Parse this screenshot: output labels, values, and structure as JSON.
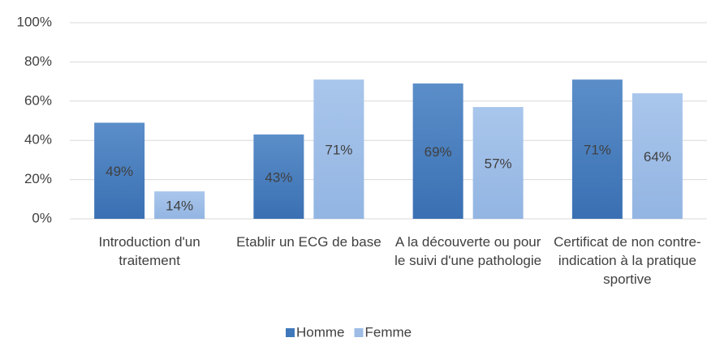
{
  "chart_data": {
    "type": "bar",
    "categories": [
      "Introduction d'un traitement",
      "Etablir un ECG de base",
      "A la découverte ou pour le suivi d'une pathologie",
      "Certificat de non contre-indication à la pratique sportive"
    ],
    "series": [
      {
        "name": "Homme",
        "color": "#3f78bb",
        "values": [
          49,
          43,
          69,
          71
        ],
        "value_labels": [
          "49%",
          "43%",
          "69%",
          "71%"
        ]
      },
      {
        "name": "Femme",
        "color": "#9dbde6",
        "values": [
          14,
          71,
          57,
          64
        ],
        "value_labels": [
          "14%",
          "71%",
          "57%",
          "64%"
        ]
      }
    ],
    "ylim": [
      0,
      100
    ],
    "yticks": [
      {
        "value": 0,
        "label": "0%"
      },
      {
        "value": 20,
        "label": "20%"
      },
      {
        "value": 40,
        "label": "40%"
      },
      {
        "value": 60,
        "label": "60%"
      },
      {
        "value": 80,
        "label": "80%"
      },
      {
        "value": 100,
        "label": "100%"
      }
    ],
    "grid": true,
    "legend": "bottom"
  }
}
